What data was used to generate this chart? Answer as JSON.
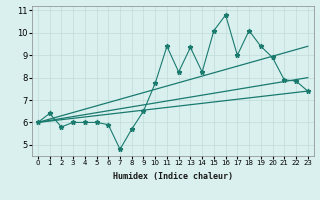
{
  "xlabel": "Humidex (Indice chaleur)",
  "x_data": [
    0,
    1,
    2,
    3,
    4,
    5,
    6,
    7,
    8,
    9,
    10,
    11,
    12,
    13,
    14,
    15,
    16,
    17,
    18,
    19,
    20,
    21,
    22,
    23
  ],
  "y_scatter": [
    6.0,
    6.4,
    5.8,
    6.0,
    6.0,
    6.0,
    5.9,
    4.8,
    5.7,
    6.5,
    7.75,
    9.4,
    8.25,
    9.35,
    8.25,
    10.1,
    10.8,
    9.0,
    10.1,
    9.4,
    8.9,
    7.9,
    7.85,
    7.4
  ],
  "line_color": "#1a7a6e",
  "bg_color": "#d9f0ef",
  "grid_color": "#c0dbd9",
  "ylim": [
    4.5,
    11.2
  ],
  "xlim": [
    -0.5,
    23.5
  ],
  "yticks": [
    5,
    6,
    7,
    8,
    9,
    10,
    11
  ],
  "xticks": [
    0,
    1,
    2,
    3,
    4,
    5,
    6,
    7,
    8,
    9,
    10,
    11,
    12,
    13,
    14,
    15,
    16,
    17,
    18,
    19,
    20,
    21,
    22,
    23
  ],
  "trend_lines": [
    {
      "x0": 0,
      "y0": 6.0,
      "x1": 23,
      "y1": 7.4
    },
    {
      "x0": 0,
      "y0": 6.0,
      "x1": 23,
      "y1": 8.0
    },
    {
      "x0": 0,
      "y0": 6.0,
      "x1": 23,
      "y1": 9.4
    }
  ],
  "xlabel_fontsize": 6.0,
  "tick_fontsize_x": 5.0,
  "tick_fontsize_y": 6.0
}
